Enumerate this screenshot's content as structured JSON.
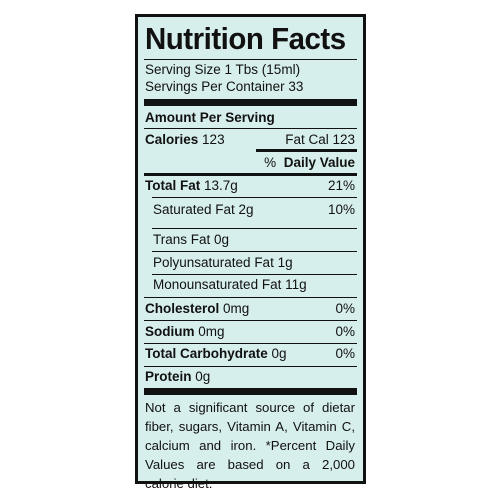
{
  "label": {
    "title": "Nutrition Facts",
    "serving_size": "Serving Size 1 Tbs  (15ml)",
    "servings_per_container": "Servings Per Container 33",
    "amount_per_serving": "Amount Per Serving",
    "calories_label": "Calories",
    "calories_value": "123",
    "fat_cal": "Fat Cal 123",
    "daily_value_header_pct": "%",
    "daily_value_header": "Daily Value",
    "total_fat_label": "Total Fat",
    "total_fat_value": "13.7g",
    "total_fat_dv": "21%",
    "sat_fat": "Saturated Fat  2g",
    "sat_fat_dv": "10%",
    "trans_fat": "Trans Fat 0g",
    "poly_fat": "Polyunsaturated Fat  1g",
    "mono_fat": "Monounsaturated Fat 11g",
    "cholesterol_label": "Cholesterol",
    "cholesterol_value": "0mg",
    "cholesterol_dv": "0%",
    "sodium_label": "Sodium",
    "sodium_value": "0mg",
    "sodium_dv": "0%",
    "carb_label": "Total Carbohydrate",
    "carb_value": "0g",
    "carb_dv": "0%",
    "protein_label": "Protein",
    "protein_value": "0g",
    "footnote_lines": [
      "Not a significant source of dietar",
      "fiber, sugars, Vitamin A, Vitamin C,",
      "calcium and iron. *Percent Daily",
      "Values are based on a 2,000",
      "calorie diet."
    ]
  },
  "colors": {
    "panel_bg": "#d6eeec",
    "ink": "#111111"
  }
}
